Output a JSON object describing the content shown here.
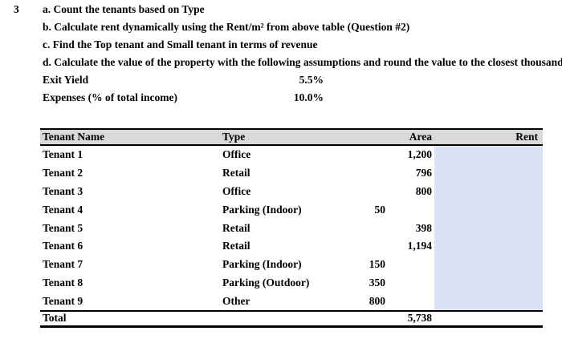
{
  "question": {
    "number": "3",
    "items": [
      "a. Count the tenants based on Type",
      "b. Calculate rent dynamically using the Rent/m² from above table (Question #2)",
      "c. Find the Top tenant and Small tenant in terms of revenue",
      "d. Calculate the value of the property with the following assumptions and round the value to the closest thousand"
    ],
    "assumptions": [
      {
        "label": "Exit Yield",
        "value": "5.5%"
      },
      {
        "label": "Expenses (% of total income)",
        "value": "10.0%"
      }
    ]
  },
  "table": {
    "headers": {
      "name": "Tenant Name",
      "type": "Type",
      "area": "Area",
      "rent": "Rent"
    },
    "rows": [
      {
        "name": "Tenant 1",
        "type": "Office",
        "area": "1,200",
        "area_col": "main"
      },
      {
        "name": "Tenant 2",
        "type": "Retail",
        "area": "796",
        "area_col": "main"
      },
      {
        "name": "Tenant 3",
        "type": "Office",
        "area": "800",
        "area_col": "main"
      },
      {
        "name": "Tenant 4",
        "type": "Parking (Indoor)",
        "area": "50",
        "area_col": "sub"
      },
      {
        "name": "Tenant 5",
        "type": "Retail",
        "area": "398",
        "area_col": "main"
      },
      {
        "name": "Tenant 6",
        "type": "Retail",
        "area": "1,194",
        "area_col": "main"
      },
      {
        "name": "Tenant 7",
        "type": "Parking (Indoor)",
        "area": "150",
        "area_col": "sub"
      },
      {
        "name": "Tenant 8",
        "type": "Parking (Outdoor)",
        "area": "350",
        "area_col": "sub"
      },
      {
        "name": "Tenant 9",
        "type": "Other",
        "area": "800",
        "area_col": "sub"
      }
    ],
    "total": {
      "label": "Total",
      "area": "5,738",
      "rent": ""
    },
    "colors": {
      "header_bg": "#d9d9d9",
      "rent_column_bg": "#dbe2f3",
      "border": "#000000"
    }
  }
}
